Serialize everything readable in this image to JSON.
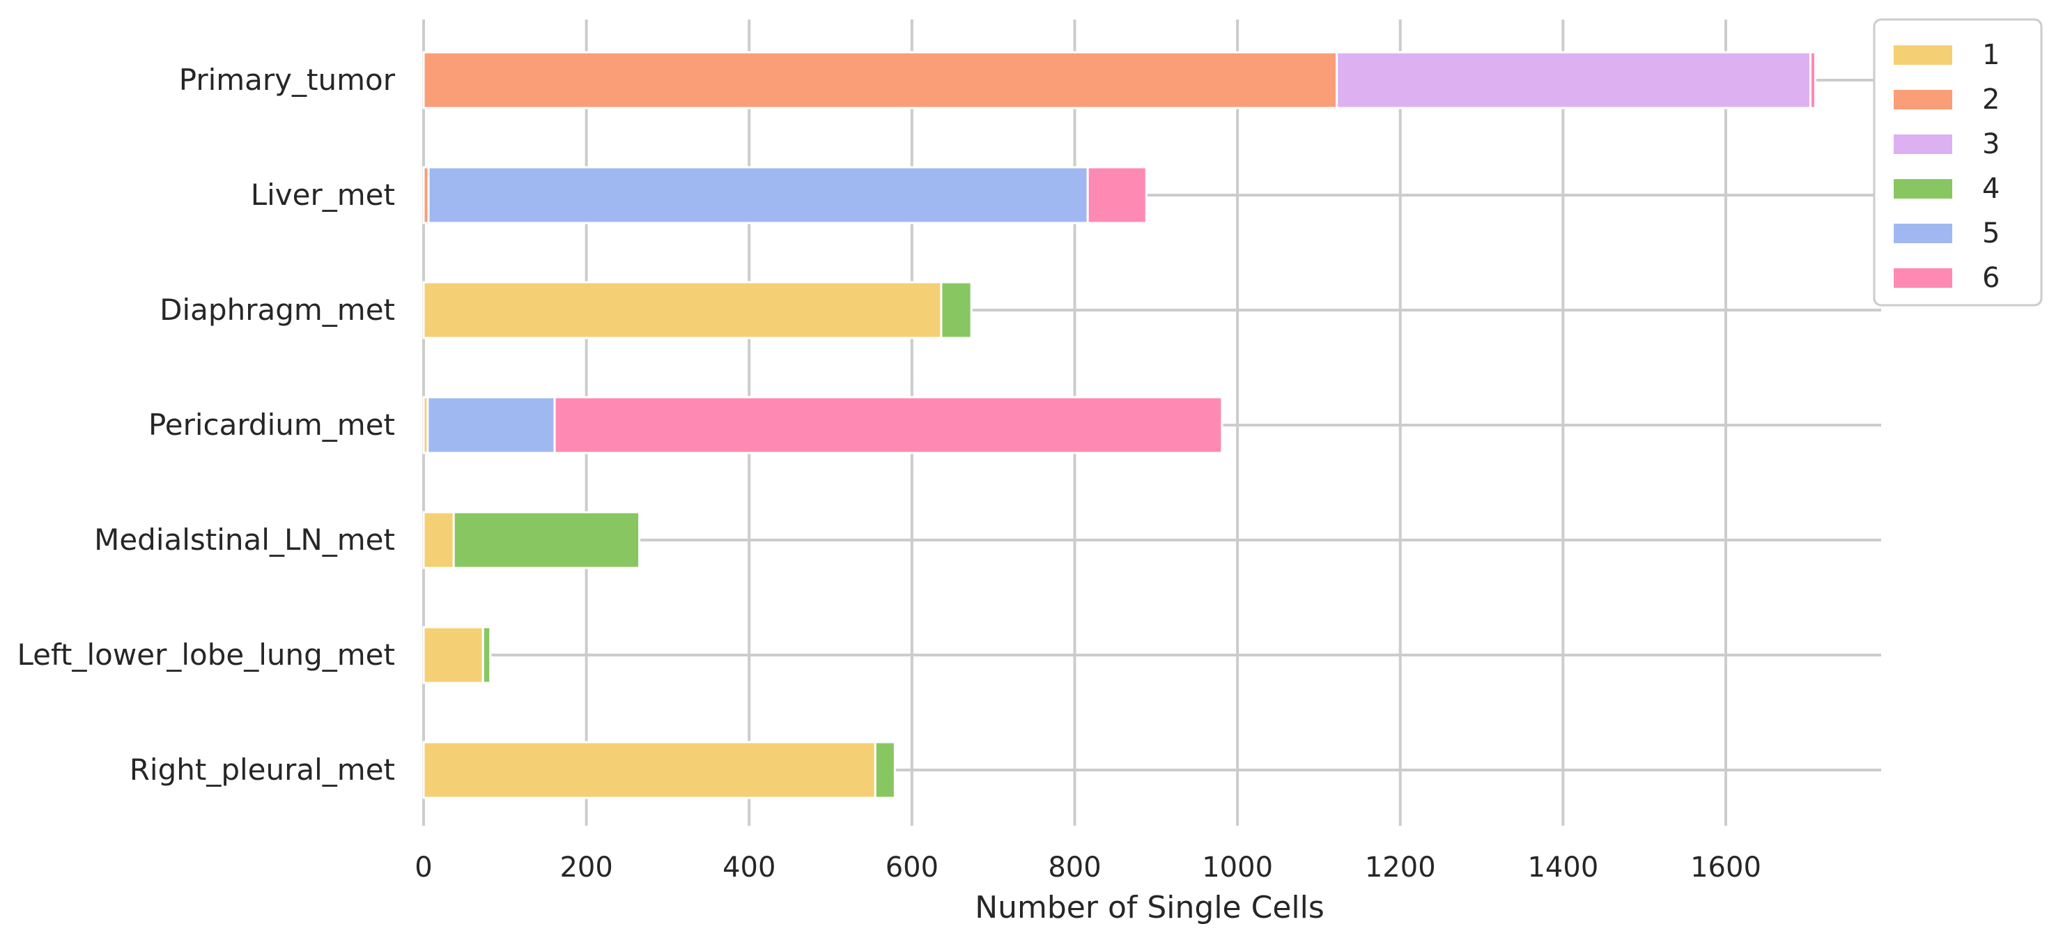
{
  "chart_data": {
    "type": "bar",
    "orientation": "horizontal",
    "stacked": true,
    "xlabel": "Number of Single Cells",
    "ylabel": "",
    "xlim": [
      0,
      1800
    ],
    "xticks": [
      0,
      200,
      400,
      600,
      800,
      1000,
      1200,
      1400,
      1600
    ],
    "grid": true,
    "legend_position": "outside top-right",
    "categories": [
      "Primary_tumor",
      "Liver_met",
      "Diaphragm_met",
      "Pericardium_met",
      "Medialstinal_LN_met",
      "Left_lower_lobe_lung_met",
      "Right_pleural_met"
    ],
    "series": [
      {
        "name": "1",
        "color": "#f5cf73",
        "values": [
          0,
          0,
          636,
          5,
          37,
          73,
          555
        ]
      },
      {
        "name": "2",
        "color": "#f99e76",
        "values": [
          1122,
          6,
          0,
          0,
          0,
          0,
          0
        ]
      },
      {
        "name": "3",
        "color": "#ddb0f2",
        "values": [
          582,
          0,
          0,
          0,
          0,
          0,
          0
        ]
      },
      {
        "name": "4",
        "color": "#88c662",
        "values": [
          0,
          0,
          37,
          0,
          228,
          9,
          24
        ]
      },
      {
        "name": "5",
        "color": "#a0b8f2",
        "values": [
          0,
          810,
          0,
          156,
          0,
          0,
          0
        ]
      },
      {
        "name": "6",
        "color": "#fe8ab3",
        "values": [
          6,
          72,
          0,
          820,
          0,
          0,
          0
        ]
      }
    ]
  }
}
